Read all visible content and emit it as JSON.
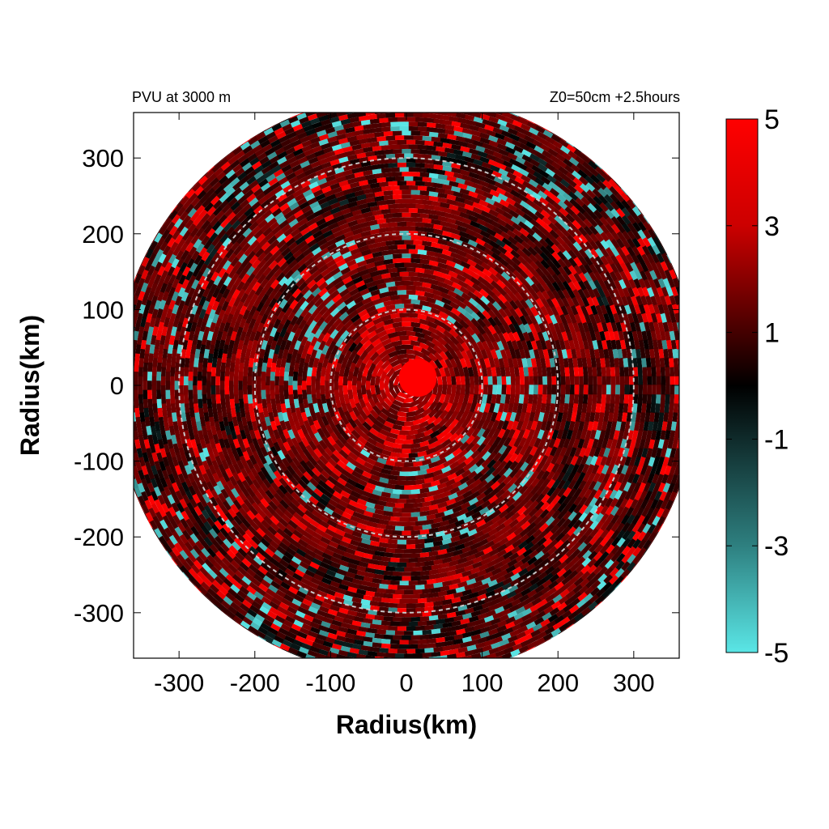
{
  "chart_data": {
    "type": "heatmap",
    "title_left": "PVU at  3000 m",
    "title_right": "Z0=50cm  +2.5hours",
    "xlabel": "Radius(km)",
    "ylabel": "Radius(km)",
    "xlim": [
      -360,
      360
    ],
    "ylim": [
      -360,
      360
    ],
    "xticks": [
      -300,
      -200,
      -100,
      0,
      100,
      200,
      300
    ],
    "yticks": [
      300,
      200,
      100,
      0,
      -100,
      -200,
      -300
    ],
    "xtick_labels": [
      "-300",
      "-200",
      "-100",
      "0",
      "100",
      "200",
      "300"
    ],
    "ytick_labels": [
      "300",
      "200",
      "100",
      "0",
      "-100",
      "-200",
      "-300"
    ],
    "data_radius_km": 385,
    "reference_circles_km": [
      100,
      200,
      300
    ],
    "center_core": {
      "x": 15,
      "y": 10,
      "radius_km": 25,
      "value": 5
    },
    "colorbar": {
      "min": -5,
      "max": 5,
      "ticks": [
        5,
        3,
        1,
        -1,
        -3,
        -5
      ],
      "tick_labels": [
        "5",
        "3",
        "1",
        "-1",
        "-3",
        "-5"
      ],
      "colors": {
        "max": "#ff0000",
        "zero": "#000000",
        "min": "#5ae6e6"
      }
    },
    "colors": {
      "circle_line": "#c8c8c8",
      "background": "#ffffff"
    }
  }
}
